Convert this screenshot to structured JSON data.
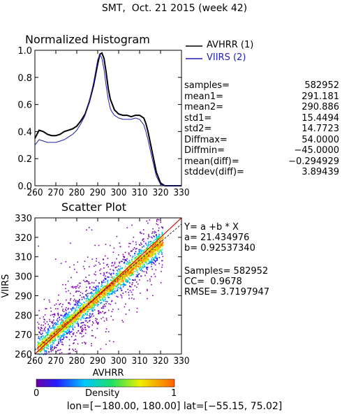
{
  "title": "SMT,  Oct. 21 2015 (week 42)",
  "colors": {
    "avhrr": "#000000",
    "viirs": "#1f1fb0",
    "fit_line": "#000000",
    "identity_line": "#d01010"
  },
  "chart_data": [
    {
      "type": "line",
      "title": "Normalized Histogram",
      "xlim": [
        260,
        330
      ],
      "ylim": [
        0.0,
        1.0
      ],
      "xticks": [
        "260",
        "270",
        "280",
        "290",
        "300",
        "310",
        "320",
        "330"
      ],
      "yticks": [
        "0.0",
        "0.2",
        "0.4",
        "0.6",
        "0.8",
        "1.0"
      ],
      "series": [
        {
          "name": "AVHRR (1)",
          "x": [
            260,
            262,
            264,
            266,
            268,
            270,
            272,
            274,
            276,
            278,
            280,
            282,
            284,
            286,
            288,
            290,
            291,
            292,
            293,
            294,
            295,
            296,
            297,
            298,
            300,
            302,
            304,
            306,
            308,
            310,
            312,
            313,
            314,
            316,
            318,
            320,
            322,
            324,
            326,
            328,
            330
          ],
          "values": [
            0.35,
            0.41,
            0.4,
            0.38,
            0.37,
            0.37,
            0.38,
            0.4,
            0.41,
            0.42,
            0.44,
            0.48,
            0.53,
            0.62,
            0.74,
            0.9,
            0.97,
            0.98,
            0.94,
            0.84,
            0.72,
            0.64,
            0.6,
            0.56,
            0.53,
            0.52,
            0.52,
            0.51,
            0.52,
            0.52,
            0.5,
            0.46,
            0.4,
            0.25,
            0.1,
            0.02,
            0.0,
            0.0,
            0.0,
            0.0,
            0.0
          ]
        },
        {
          "name": "VIIRS (2)",
          "x": [
            260,
            262,
            264,
            266,
            268,
            270,
            272,
            274,
            276,
            278,
            280,
            282,
            284,
            286,
            288,
            290,
            291,
            292,
            293,
            294,
            295,
            296,
            297,
            298,
            300,
            302,
            304,
            306,
            308,
            310,
            312,
            313,
            314,
            316,
            318,
            320,
            322,
            324,
            326,
            328,
            330
          ],
          "values": [
            0.3,
            0.34,
            0.33,
            0.32,
            0.32,
            0.32,
            0.33,
            0.34,
            0.36,
            0.38,
            0.41,
            0.46,
            0.52,
            0.62,
            0.76,
            0.93,
            0.97,
            0.94,
            0.86,
            0.74,
            0.64,
            0.57,
            0.54,
            0.52,
            0.5,
            0.49,
            0.49,
            0.49,
            0.5,
            0.49,
            0.45,
            0.4,
            0.34,
            0.2,
            0.07,
            0.01,
            0.0,
            0.0,
            0.0,
            0.0,
            0.0
          ]
        }
      ]
    },
    {
      "type": "scatter",
      "title": "Scatter Plot",
      "xlabel": "AVHRR",
      "ylabel": "VIIRS",
      "xlim": [
        260,
        330
      ],
      "ylim": [
        260,
        330
      ],
      "xticks": [
        "260",
        "270",
        "280",
        "290",
        "300",
        "310",
        "320",
        "330"
      ],
      "yticks": [
        "260",
        "270",
        "280",
        "290",
        "300",
        "310",
        "320",
        "330"
      ],
      "fit": {
        "a": 21.434976,
        "b": 0.9253734
      },
      "density_legend": {
        "label": "Density",
        "min_label": "0",
        "max_label": "1"
      }
    }
  ],
  "stats": [
    {
      "label": "samples=",
      "value": "582952"
    },
    {
      "label": "mean1=",
      "value": "291.181"
    },
    {
      "label": "mean2=",
      "value": "290.886"
    },
    {
      "label": "std1=",
      "value": "15.4494"
    },
    {
      "label": "std2=",
      "value": "14.7723"
    },
    {
      "label": "Diffmax=",
      "value": "54.0000"
    },
    {
      "label": "Diffmin=",
      "value": "−45.0000"
    },
    {
      "label": "mean(diff)=",
      "value": "−0.294929"
    },
    {
      "label": "stddev(diff)=",
      "value": "3.89439"
    }
  ],
  "fit_text": {
    "equation": "Y= a +b * X",
    "a": "a= 21.434976",
    "b": "b= 0.92537340",
    "samples": "Samples= 582952",
    "cc": "CC=  0.9678",
    "rmse": "RMSE= 3.7197947"
  },
  "footer": "lon=[−180.00, 180.00] lat=[−55.15, 75.02]"
}
